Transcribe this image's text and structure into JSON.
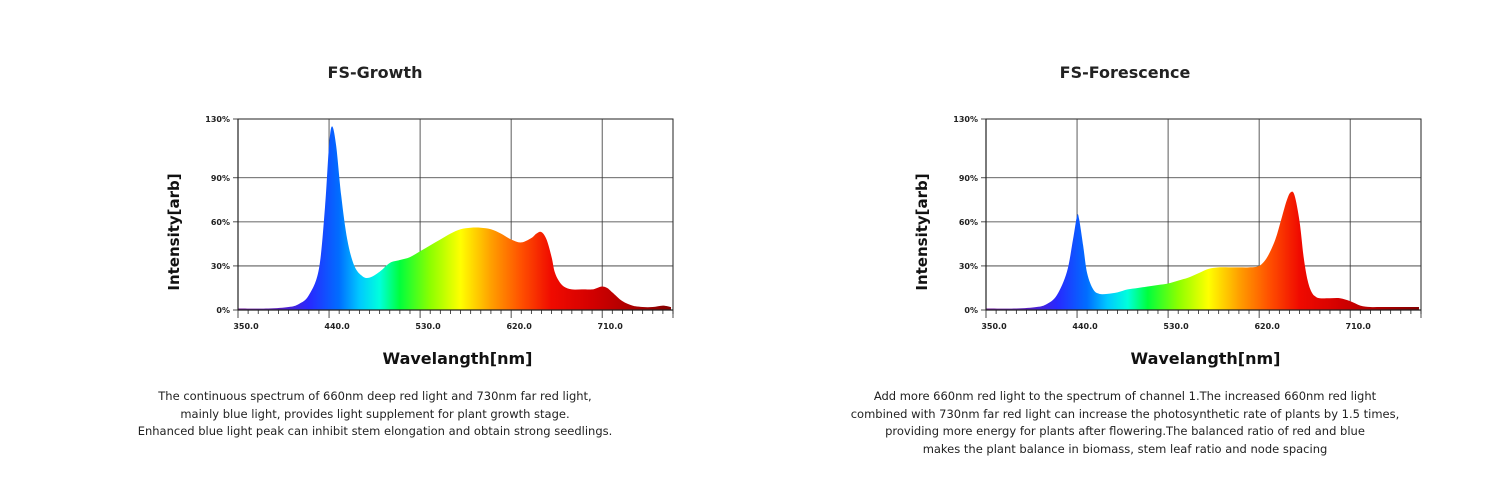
{
  "chart_data": [
    {
      "type": "area",
      "title": "FS-Growth",
      "xlabel": "Wavelangth[nm]",
      "ylabel": "Intensity[arb]",
      "xlim": [
        350,
        780
      ],
      "ylim": [
        0,
        130
      ],
      "x_ticks": [
        "350.0",
        "440.0",
        "530.0",
        "620.0",
        "710.0"
      ],
      "y_ticks": [
        "0%",
        "30%",
        "60%",
        "90%",
        "130%"
      ],
      "grid": true,
      "fill": "wavelength-rainbow",
      "x": [
        350,
        380,
        400,
        410,
        420,
        430,
        436,
        440,
        443,
        447,
        452,
        458,
        465,
        473,
        480,
        490,
        500,
        510,
        520,
        530,
        540,
        550,
        560,
        570,
        580,
        590,
        600,
        610,
        620,
        630,
        640,
        645,
        650,
        655,
        660,
        663,
        667,
        672,
        680,
        690,
        700,
        705,
        710,
        715,
        720,
        730,
        740,
        750,
        760,
        770,
        778
      ],
      "y": [
        1,
        1,
        2,
        4,
        10,
        28,
        70,
        112,
        125,
        112,
        78,
        48,
        30,
        23,
        22,
        26,
        32,
        34,
        36,
        40,
        44,
        48,
        52,
        55,
        56,
        56,
        55,
        52,
        48,
        46,
        49,
        52,
        53,
        48,
        36,
        26,
        20,
        16,
        14,
        14,
        14,
        15,
        16,
        15,
        12,
        6,
        3,
        2,
        2,
        3,
        2
      ]
    },
    {
      "type": "area",
      "title": "FS-Forescence",
      "xlabel": "Wavelangth[nm]",
      "ylabel": "Intensity[arb]",
      "xlim": [
        350,
        780
      ],
      "ylim": [
        0,
        130
      ],
      "x_ticks": [
        "350.0",
        "440.0",
        "530.0",
        "620.0",
        "710.0"
      ],
      "y_ticks": [
        "0%",
        "30%",
        "60%",
        "90%",
        "130%"
      ],
      "grid": true,
      "fill": "wavelength-rainbow",
      "x": [
        350,
        380,
        400,
        410,
        420,
        430,
        436,
        440,
        442,
        446,
        450,
        456,
        462,
        470,
        480,
        490,
        500,
        510,
        520,
        530,
        540,
        550,
        560,
        570,
        580,
        590,
        600,
        610,
        620,
        628,
        636,
        642,
        647,
        651,
        655,
        660,
        664,
        668,
        672,
        676,
        680,
        690,
        700,
        710,
        720,
        730,
        740,
        750,
        760,
        770,
        778
      ],
      "y": [
        1,
        1,
        2,
        4,
        10,
        26,
        48,
        64,
        62,
        44,
        25,
        14,
        11,
        11,
        12,
        14,
        15,
        16,
        17,
        18,
        20,
        22,
        25,
        28,
        29,
        29,
        29,
        29,
        30,
        36,
        48,
        62,
        74,
        80,
        78,
        60,
        36,
        20,
        12,
        9,
        8,
        8,
        8,
        6,
        3,
        2,
        2,
        2,
        2,
        2,
        2
      ]
    }
  ],
  "descriptions": [
    {
      "lines": [
        "The continuous spectrum of 660nm deep red light and 730nm far red light,",
        "mainly blue light, provides light supplement for plant growth stage.",
        "Enhanced blue light peak can inhibit stem elongation and obtain strong seedlings."
      ]
    },
    {
      "lines": [
        "Add more 660nm red light to the spectrum of channel 1.The increased 660nm red light",
        "combined with 730nm far red light can increase the photosynthetic rate of plants by 1.5 times,",
        "providing more energy for plants after flowering.The balanced ratio of red and blue",
        "makes the plant balance in biomass, stem leaf ratio and node spacing"
      ]
    }
  ]
}
